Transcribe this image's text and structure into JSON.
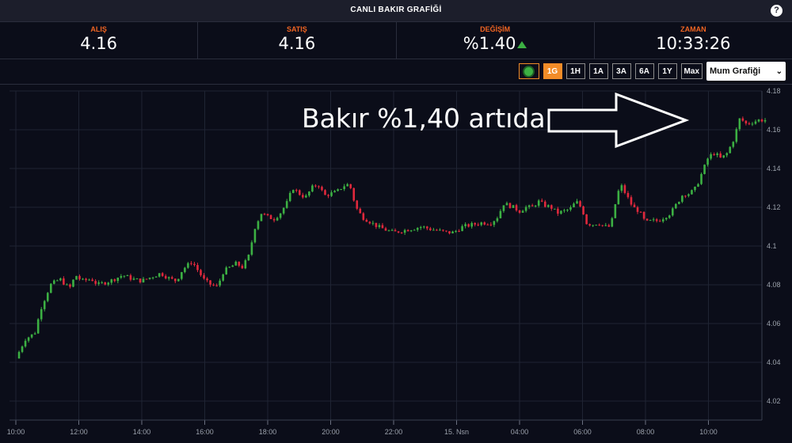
{
  "header": {
    "title": "CANLI BAKIR GRAFİĞİ",
    "help_label": "?"
  },
  "stats": [
    {
      "label": "ALIŞ",
      "value": "4.16"
    },
    {
      "label": "SATIŞ",
      "value": "4.16"
    },
    {
      "label": "DEĞİŞİM",
      "value": "%1.40"
    },
    {
      "label": "ZAMAN",
      "value": "10:33:26"
    }
  ],
  "toolbar": {
    "ranges": [
      "1G",
      "1H",
      "1A",
      "3A",
      "6A",
      "1Y",
      "Max"
    ],
    "active_range": "1G",
    "chart_type": "Mum Grafiği"
  },
  "annotation": "Bakır %1,40 artıda",
  "colors": {
    "up": "#3cb043",
    "down": "#e0283c",
    "accent": "#f28c28",
    "label": "#f26522"
  },
  "chart_data": {
    "type": "candlestick",
    "x_ticks": [
      "10:00",
      "12:00",
      "14:00",
      "16:00",
      "18:00",
      "20:00",
      "22:00",
      "15. Nsn",
      "04:00",
      "06:00",
      "08:00",
      "10:00"
    ],
    "y_ticks": [
      "4.18",
      "4.16",
      "4.14",
      "4.12",
      "4.1",
      "4.08",
      "4.06",
      "4.04",
      "4.02"
    ],
    "ylim": [
      4.02,
      4.18
    ],
    "grid": true,
    "close_path": [
      [
        0,
        4.042
      ],
      [
        0.3,
        4.052
      ],
      [
        0.6,
        4.055
      ],
      [
        0.8,
        4.068
      ],
      [
        1.1,
        4.08
      ],
      [
        1.4,
        4.083
      ],
      [
        1.7,
        4.078
      ],
      [
        1.9,
        4.085
      ],
      [
        2.1,
        4.082
      ],
      [
        2.4,
        4.083
      ],
      [
        2.6,
        4.08
      ],
      [
        3.0,
        4.082
      ],
      [
        3.4,
        4.085
      ],
      [
        3.7,
        4.083
      ],
      [
        4.0,
        4.082
      ],
      [
        4.3,
        4.084
      ],
      [
        4.6,
        4.086
      ],
      [
        4.9,
        4.083
      ],
      [
        5.1,
        4.082
      ],
      [
        5.3,
        4.088
      ],
      [
        5.6,
        4.092
      ],
      [
        5.8,
        4.087
      ],
      [
        6.0,
        4.082
      ],
      [
        6.2,
        4.08
      ],
      [
        6.4,
        4.079
      ],
      [
        6.6,
        4.087
      ],
      [
        6.8,
        4.089
      ],
      [
        7.0,
        4.091
      ],
      [
        7.2,
        4.089
      ],
      [
        7.4,
        4.095
      ],
      [
        7.6,
        4.11
      ],
      [
        7.8,
        4.117
      ],
      [
        8.0,
        4.115
      ],
      [
        8.2,
        4.114
      ],
      [
        8.4,
        4.117
      ],
      [
        8.6,
        4.122
      ],
      [
        8.8,
        4.13
      ],
      [
        9.0,
        4.127
      ],
      [
        9.2,
        4.125
      ],
      [
        9.4,
        4.13
      ],
      [
        9.6,
        4.132
      ],
      [
        9.8,
        4.126
      ],
      [
        10.0,
        4.127
      ],
      [
        10.2,
        4.128
      ],
      [
        10.4,
        4.131
      ],
      [
        10.6,
        4.132
      ],
      [
        10.8,
        4.12
      ],
      [
        11.0,
        4.115
      ],
      [
        11.2,
        4.113
      ],
      [
        11.5,
        4.11
      ],
      [
        11.8,
        4.108
      ],
      [
        12.0,
        4.107
      ],
      [
        12.3,
        4.108
      ],
      [
        12.6,
        4.109
      ],
      [
        12.9,
        4.11
      ],
      [
        13.1,
        4.109
      ],
      [
        13.4,
        4.108
      ],
      [
        13.7,
        4.107
      ],
      [
        13.9,
        4.107
      ],
      [
        14.2,
        4.11
      ],
      [
        14.5,
        4.111
      ],
      [
        14.8,
        4.112
      ],
      [
        15.1,
        4.112
      ],
      [
        15.3,
        4.115
      ],
      [
        15.5,
        4.122
      ],
      [
        15.8,
        4.12
      ],
      [
        16.0,
        4.118
      ],
      [
        16.2,
        4.12
      ],
      [
        16.4,
        4.12
      ],
      [
        16.6,
        4.123
      ],
      [
        16.8,
        4.121
      ],
      [
        17.0,
        4.12
      ],
      [
        17.2,
        4.117
      ],
      [
        17.4,
        4.118
      ],
      [
        17.6,
        4.119
      ],
      [
        17.8,
        4.123
      ],
      [
        18.0,
        4.119
      ],
      [
        18.1,
        4.112
      ],
      [
        18.3,
        4.111
      ],
      [
        18.5,
        4.112
      ],
      [
        18.7,
        4.11
      ],
      [
        18.9,
        4.11
      ],
      [
        19.0,
        4.119
      ],
      [
        19.2,
        4.132
      ],
      [
        19.4,
        4.126
      ],
      [
        19.6,
        4.12
      ],
      [
        19.8,
        4.118
      ],
      [
        20.0,
        4.112
      ],
      [
        20.2,
        4.113
      ],
      [
        20.4,
        4.113
      ],
      [
        20.6,
        4.115
      ],
      [
        20.8,
        4.117
      ],
      [
        21.0,
        4.122
      ],
      [
        21.2,
        4.127
      ],
      [
        21.4,
        4.127
      ],
      [
        21.6,
        4.13
      ],
      [
        21.8,
        4.138
      ],
      [
        22.0,
        4.146
      ],
      [
        22.2,
        4.148
      ],
      [
        22.4,
        4.145
      ],
      [
        22.6,
        4.148
      ],
      [
        22.8,
        4.155
      ],
      [
        23.0,
        4.166
      ],
      [
        23.2,
        4.163
      ],
      [
        23.4,
        4.164
      ],
      [
        23.6,
        4.165
      ],
      [
        23.8,
        4.165
      ]
    ]
  }
}
